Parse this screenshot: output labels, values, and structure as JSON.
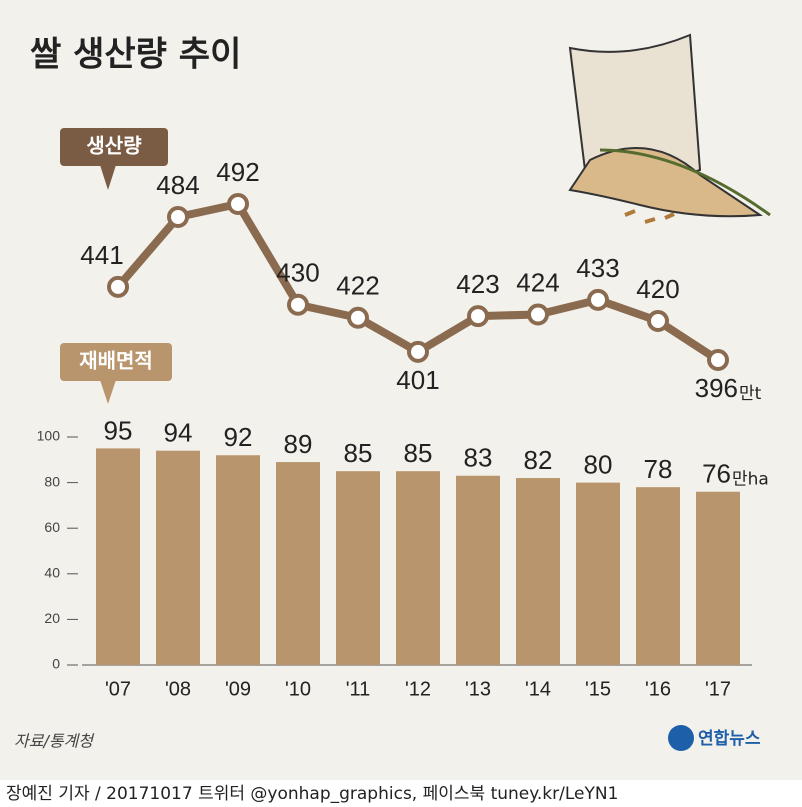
{
  "title": "쌀 생산량 추이",
  "source": "자료/통계청",
  "logo": "연합뉴스",
  "credit": "장예진 기자 / 20171017 트위터 @yonhap_graphics, 페이스북 tuney.kr/LeYN1",
  "chart_data": [
    {
      "type": "line",
      "label": "생산량",
      "unit": "만t",
      "color": "#8b6b50",
      "values": [
        441,
        484,
        492,
        430,
        422,
        401,
        423,
        424,
        433,
        420,
        396
      ],
      "ylim": [
        380,
        500
      ]
    },
    {
      "type": "bar",
      "label": "재배면적",
      "unit": "만ha",
      "color": "#b8956c",
      "categories": [
        "'07",
        "'08",
        "'09",
        "'10",
        "'11",
        "'12",
        "'13",
        "'14",
        "'15",
        "'16",
        "'17"
      ],
      "values": [
        95,
        94,
        92,
        89,
        85,
        85,
        83,
        82,
        80,
        78,
        76
      ],
      "ylim": [
        0,
        100
      ],
      "yticks": [
        0,
        20,
        40,
        60,
        80,
        100
      ]
    }
  ]
}
